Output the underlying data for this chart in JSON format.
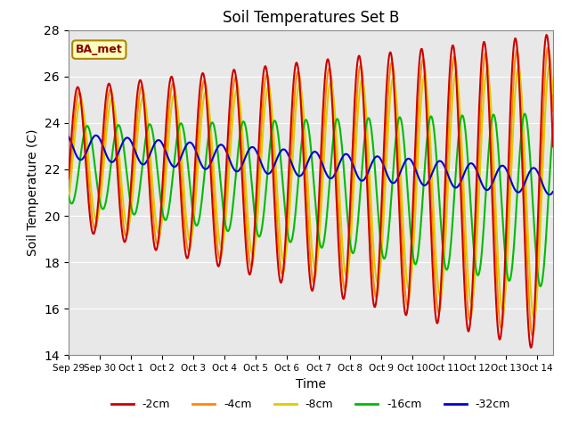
{
  "title": "Soil Temperatures Set B",
  "xlabel": "Time",
  "ylabel": "Soil Temperature (C)",
  "ylim": [
    14,
    28
  ],
  "yticks": [
    14,
    16,
    18,
    20,
    22,
    24,
    26,
    28
  ],
  "legend_labels": [
    "-2cm",
    "-4cm",
    "-8cm",
    "-16cm",
    "-32cm"
  ],
  "legend_colors": [
    "#cc0000",
    "#ff8800",
    "#ddcc00",
    "#00bb00",
    "#0000cc"
  ],
  "annotation_text": "BA_met",
  "annotation_fg": "#880000",
  "annotation_bg": "#ffffbb",
  "annotation_edge": "#aa8800",
  "plot_bg_color": "#e8e8e8",
  "tick_labels": [
    "Sep 29",
    "Sep 30",
    "Oct 1",
    "Oct 2",
    "Oct 3",
    "Oct 4",
    "Oct 5",
    "Oct 6",
    "Oct 7",
    "Oct 8",
    "Oct 9",
    "Oct 10",
    "Oct 11",
    "Oct 12",
    "Oct 13",
    "Oct 14"
  ],
  "n_days": 15.5,
  "n_points": 744
}
